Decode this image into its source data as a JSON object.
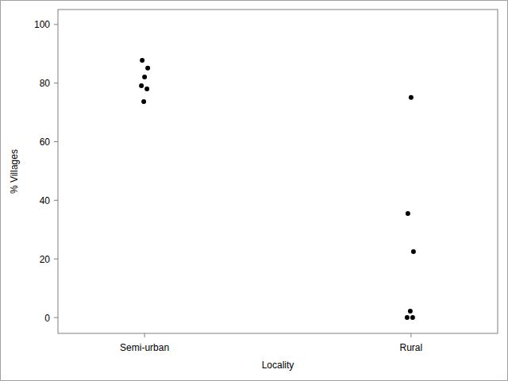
{
  "chart_data": {
    "type": "scatter",
    "x_label": "Locality",
    "y_label": "% Villages",
    "categories": [
      "Semi-urban",
      "Rural"
    ],
    "values": [
      [
        87.8,
        85.1,
        82.1,
        79.1,
        78.0,
        73.7
      ],
      [
        75.1,
        35.5,
        22.5,
        2.2,
        0,
        0
      ]
    ],
    "color": "#000000",
    "marker": "circle",
    "ylim": [
      -5.4,
      105.1
    ],
    "yticks": [
      0,
      20,
      40,
      60,
      80,
      100
    ],
    "grid": false
  }
}
